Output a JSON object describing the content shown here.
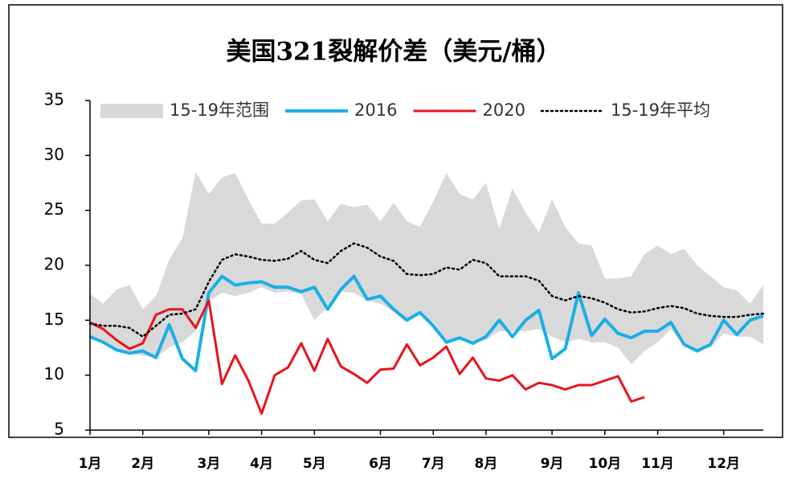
{
  "chart_data": {
    "type": "line",
    "title": "美国321裂解价差（美元/桶）",
    "categories": [
      "1月",
      null,
      null,
      null,
      "2月",
      null,
      null,
      null,
      null,
      "3月",
      null,
      null,
      null,
      "4月",
      null,
      null,
      null,
      "5月",
      null,
      null,
      null,
      null,
      "6月",
      null,
      null,
      null,
      "7月",
      null,
      null,
      null,
      "8月",
      null,
      null,
      null,
      null,
      "9月",
      null,
      null,
      null,
      "10月",
      null,
      null,
      null,
      "11月",
      null,
      null,
      null,
      null,
      "12月",
      null,
      null,
      null
    ],
    "series": [
      {
        "name": "15-19年范围",
        "color": "#d9d9d9",
        "kind": "band",
        "values": [
          17.4,
          16.5,
          17.8,
          18.2,
          16,
          17.2,
          20.5,
          22.5,
          28.5,
          26.5,
          28,
          28.4,
          26,
          23.8,
          23.8,
          24.8,
          25.9,
          26,
          24,
          25.6,
          25.3,
          25.5,
          24,
          25.7,
          24,
          23.5,
          25.8,
          28.4,
          26.5,
          26,
          27.5,
          23.3,
          27,
          24.8,
          23,
          26,
          23.5,
          22,
          21.8,
          18.8,
          18.8,
          19,
          21,
          21.8,
          21,
          21.5,
          20,
          19,
          18,
          17.7,
          16.5,
          18.2
        ],
        "values_low": [
          13.3,
          13,
          12.5,
          12,
          11.8,
          11.6,
          12.5,
          13,
          14,
          16.8,
          17.5,
          17.2,
          17.5,
          18,
          17.5,
          17.6,
          17.4,
          15,
          16.2,
          17.6,
          17.5,
          16.8,
          16.5,
          15.8,
          15,
          15.5,
          14.8,
          13.2,
          13.2,
          13,
          13.2,
          14,
          14,
          14,
          14.2,
          13.5,
          13,
          13.3,
          13,
          13,
          12.5,
          11,
          12.2,
          13,
          14.2,
          12.7,
          12.3,
          12.5,
          13.8,
          13.5,
          13.5,
          12.8
        ]
      },
      {
        "name": "2016",
        "color": "#1aafe6",
        "width": 4,
        "values": [
          13.5,
          13,
          12.3,
          12,
          12.2,
          11.6,
          14.6,
          11.5,
          10.4,
          17.5,
          19,
          18.2,
          18.4,
          18.5,
          18,
          18,
          17.6,
          18,
          16,
          17.8,
          19,
          16.9,
          17.2,
          16,
          15,
          15.7,
          14.5,
          13,
          13.4,
          12.9,
          13.5,
          15,
          13.5,
          15,
          15.9,
          11.5,
          12.4,
          17.5,
          13.6,
          15.1,
          13.8,
          13.4,
          14,
          14,
          14.8,
          12.8,
          12.2,
          12.8,
          15,
          13.7,
          15,
          15.4
        ]
      },
      {
        "name": "2020",
        "color": "#e8141b",
        "width": 3,
        "values": [
          14.8,
          14.2,
          13.2,
          12.4,
          12.9,
          15.5,
          16,
          16,
          14.3,
          16.8,
          9.2,
          11.8,
          9.5,
          6.5,
          10,
          10.7,
          12.9,
          10.4,
          13.3,
          10.8,
          10.1,
          9.3,
          10.5,
          10.6,
          12.8,
          10.9,
          11.6,
          12.6,
          10.1,
          11.6,
          9.7,
          9.5,
          10,
          8.7,
          9.3,
          9.1,
          8.7,
          9.1,
          9.1,
          9.5,
          9.9,
          7.6,
          8,
          null,
          null,
          null,
          null,
          null,
          null,
          null,
          null,
          null
        ]
      },
      {
        "name": "15-19年平均",
        "color": "#000000",
        "width": 2.5,
        "dash": "dotted",
        "values": [
          14.7,
          14.5,
          14.5,
          14.3,
          13.5,
          14.5,
          15.5,
          15.6,
          16,
          18.5,
          20.5,
          21,
          20.8,
          20.5,
          20.4,
          20.6,
          21.3,
          20.5,
          20.2,
          21.3,
          22,
          21.6,
          20.8,
          20.4,
          19.2,
          19.1,
          19.2,
          19.8,
          19.6,
          20.5,
          20.2,
          19,
          19,
          19,
          18.6,
          17.2,
          16.8,
          17.2,
          17,
          16.6,
          16,
          15.7,
          15.8,
          16.1,
          16.3,
          16.1,
          15.6,
          15.4,
          15.3,
          15.3,
          15.5,
          15.6
        ]
      }
    ],
    "ylim": [
      5,
      35
    ],
    "yticks": [
      5,
      10,
      15,
      20,
      25,
      30,
      35
    ],
    "legend": "top"
  }
}
